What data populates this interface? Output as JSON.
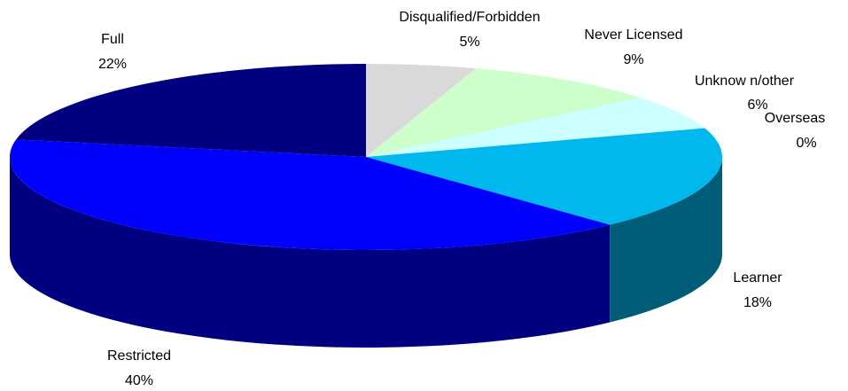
{
  "chart_data": {
    "type": "pie",
    "categories": [
      "Disqualified/Forbidden",
      "Never Licensed",
      "Unknow n/other",
      "Overseas",
      "Learner",
      "Restricted",
      "Full"
    ],
    "values": [
      5,
      9,
      6,
      0,
      18,
      40,
      22
    ],
    "value_labels": [
      "5%",
      "9%",
      "6%",
      "0%",
      "18%",
      "40%",
      "22%"
    ],
    "colors": [
      "#d9d9d9",
      "#ccffcc",
      "#ccffff",
      "#9999ff",
      "#00b8ee",
      "#0000ff",
      "#000080"
    ]
  }
}
